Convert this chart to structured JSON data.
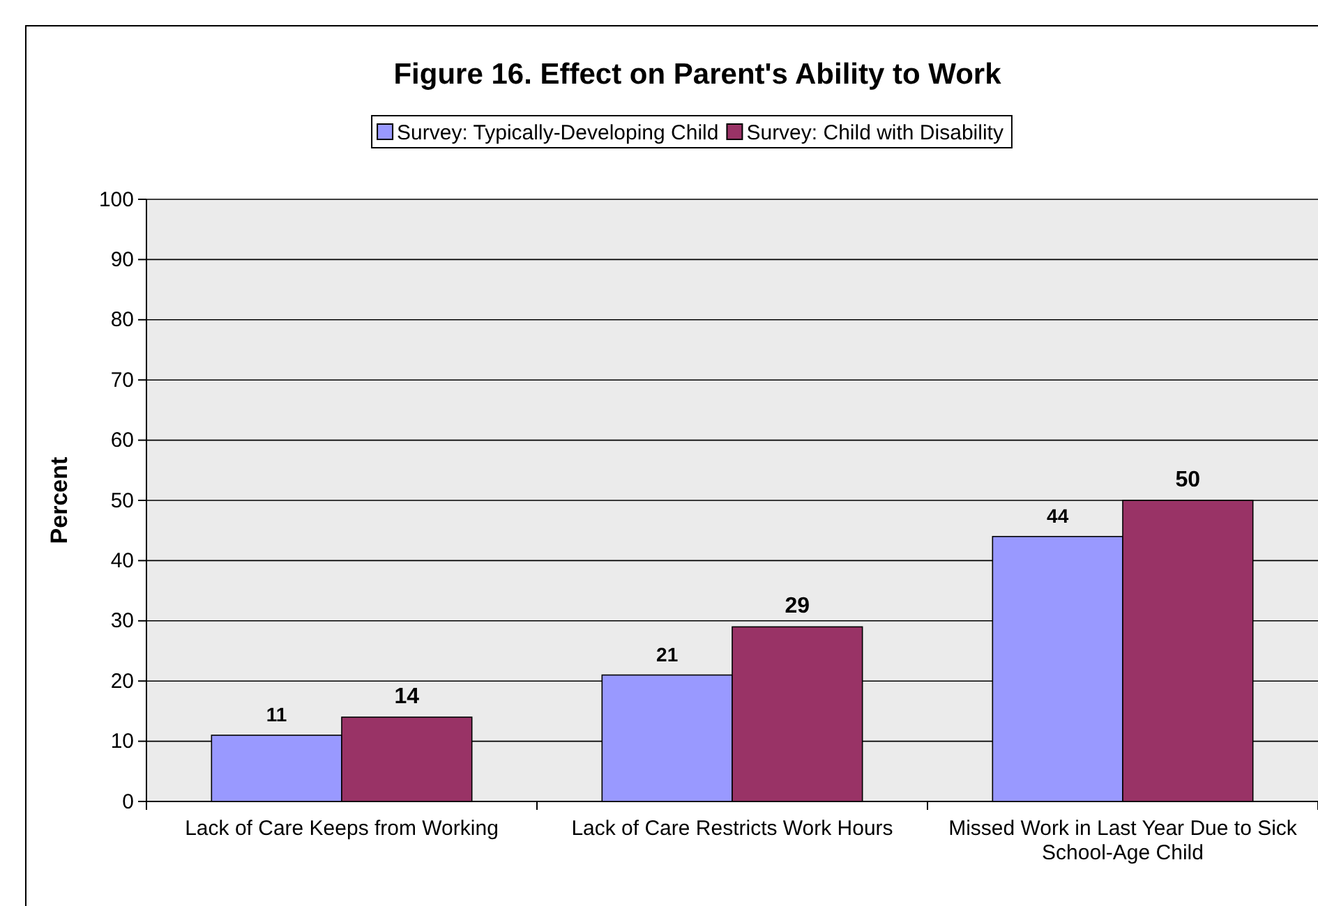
{
  "chart_data": {
    "type": "bar",
    "title": "Figure 16.  Effect on Parent's Ability to Work",
    "ylabel": "Percent",
    "categories": [
      "Lack of Care Keeps from Working",
      "Lack of Care Restricts Work Hours",
      "Missed Work in Last Year Due to Sick School-Age Child"
    ],
    "series": [
      {
        "name": "Survey: Typically-Developing Child",
        "color": "#9999ff",
        "values": [
          11,
          21,
          44
        ]
      },
      {
        "name": "Survey: Child with Disability",
        "color": "#993366",
        "values": [
          14,
          29,
          50
        ]
      }
    ],
    "ylim": [
      0,
      100
    ],
    "yticks": [
      0,
      10,
      20,
      30,
      40,
      50,
      60,
      70,
      80,
      90,
      100
    ],
    "grid": "y",
    "legend": "top",
    "data_labels": true
  }
}
